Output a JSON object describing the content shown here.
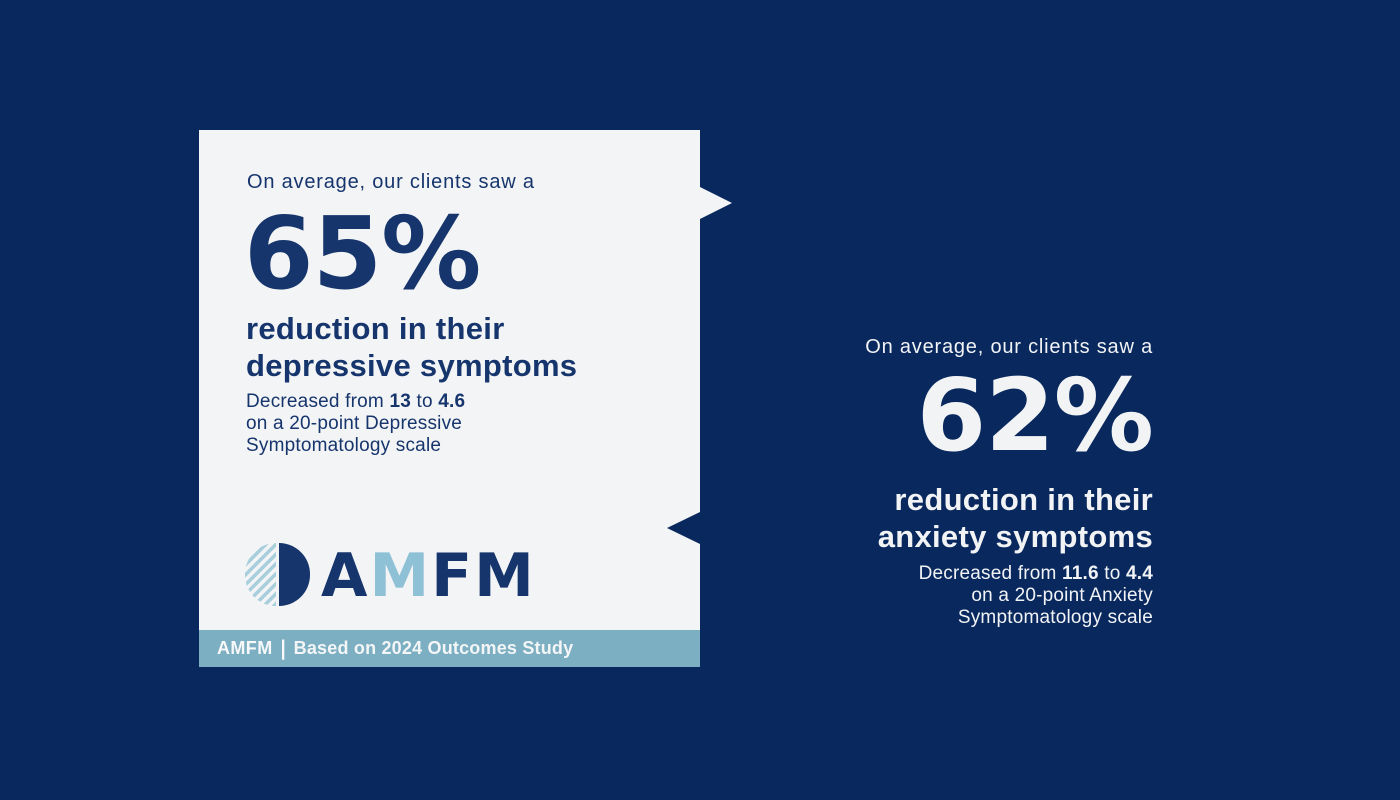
{
  "colors": {
    "background": "#08285e",
    "card_bg": "#f3f4f5",
    "navy_text": "#16356d",
    "light_blue": "#8fc1d6",
    "stripe_blue": "#a9cedc",
    "footer_bar": "#7cafc2",
    "light_text": "#f2f3f5"
  },
  "left_card": {
    "intro": "On average, our clients saw a",
    "stat_value": "65%",
    "headline": [
      "reduction in their",
      "depressive symptoms"
    ],
    "detail": {
      "prefix": "Decreased from ",
      "from_value": "13",
      "connector": " to ",
      "to_value": "4.6",
      "line2": "on a 20-point Depressive",
      "line3": "Symptomatology scale"
    },
    "logo": {
      "letter1": "A",
      "letter2": "M",
      "letter3": "F",
      "letter4": "M"
    },
    "footer": {
      "brand": "AMFM",
      "divider": "|",
      "text": "Based on 2024 Outcomes Study"
    }
  },
  "right_panel": {
    "intro": "On average, our clients saw a",
    "stat_value": "62%",
    "headline": [
      "reduction in their",
      "anxiety symptoms"
    ],
    "detail": {
      "prefix": "Decreased from ",
      "from_value": "11.6",
      "connector": " to ",
      "to_value": "4.4",
      "line2": "on a 20-point Anxiety",
      "line3": "Symptomatology scale"
    }
  }
}
